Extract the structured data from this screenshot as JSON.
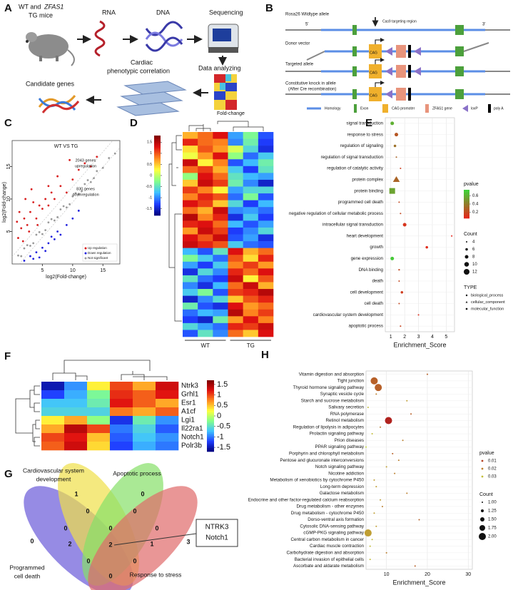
{
  "panel_labels": [
    "A",
    "B",
    "C",
    "D",
    "E",
    "F",
    "G",
    "H"
  ],
  "panel_a": {
    "mice_line1": "WT and",
    "mice_gene": "ZFAS1",
    "mice_line2": "TG mice",
    "rna": "RNA",
    "dna": "DNA",
    "sequencing": "Sequencing",
    "data_analyzing": "Data analyzing",
    "correlation": [
      "Cardiac",
      "phenotypic correlation"
    ],
    "candidates": "Candidate genes"
  },
  "panel_b": {
    "wildtype": "Rosa26 Wildtype allele",
    "five_prime": "5'",
    "three_prime": "3'",
    "cas9": "Cas9 targeting region",
    "donor": "Donor vector",
    "targeted": "Targeted allele",
    "constitutive": [
      "Constitutive knock in allele",
      "(After Cre recombination)"
    ],
    "cag_labels": [
      "CAG",
      "CAG",
      "CAG"
    ],
    "legend": [
      "Homology",
      "Exon",
      "CAG promoter",
      "ZFAS1 gene",
      "loxP",
      "poly A"
    ]
  },
  "chart_data": [
    {
      "type": "scatter",
      "title": "WT VS TG",
      "xlabel": "log2(Fold-change)",
      "ylabel": "log2(Fold-change)",
      "annotations": [
        [
          "2043 genes",
          "upregulation"
        ],
        [
          "830 genes",
          "downregulation"
        ]
      ],
      "xlim": [
        0,
        17.8
      ],
      "ylim": [
        0,
        19
      ],
      "xticks": [
        5,
        10,
        15
      ],
      "yticks": [
        5,
        10,
        15
      ],
      "series": [
        {
          "name": "Up regulation",
          "color": "#d81e1e",
          "x": [
            1,
            1.5,
            2,
            2.5,
            3,
            3.5,
            4,
            4.5,
            5,
            5.5,
            6,
            6.5,
            7,
            8,
            9,
            10,
            11,
            12,
            1.2,
            2.2,
            3.2,
            4.2,
            0.8,
            1.8,
            2.8,
            6,
            7.5,
            9.5,
            13,
            14
          ],
          "values": [
            4,
            5.5,
            7,
            6,
            8,
            9.5,
            7,
            9,
            8.5,
            10,
            9,
            11,
            10,
            12,
            11,
            13,
            14.5,
            15.5,
            8,
            10,
            11.5,
            6,
            6.5,
            3.5,
            5,
            12,
            13.5,
            16,
            15,
            16.5
          ]
        },
        {
          "name": "Down regulation",
          "color": "#2222dd",
          "x": [
            2,
            3,
            4,
            5,
            6,
            7,
            8,
            9,
            10,
            4.5,
            5.5,
            3.5,
            6.5,
            7.5,
            11
          ],
          "values": [
            0.5,
            1.2,
            1.8,
            2.5,
            3.2,
            3.8,
            4.5,
            6,
            7,
            1,
            2,
            0.8,
            4.2,
            5,
            8.2
          ]
        },
        {
          "name": "Not significant",
          "color": "#9a9a9a",
          "x": [
            1,
            2,
            3,
            4,
            5,
            6,
            7,
            8,
            9,
            10,
            11,
            12,
            13,
            14,
            15,
            16,
            17,
            1.5,
            2.5,
            3.5,
            4.5,
            5.5,
            6.5,
            7.5,
            8.5,
            9.5,
            10.5,
            11.5,
            12.5,
            13.5
          ],
          "values": [
            1.3,
            2.4,
            2.8,
            4.5,
            4.6,
            6.4,
            6.7,
            8.4,
            8.7,
            10.4,
            10.8,
            12.3,
            12.6,
            14.3,
            14.8,
            16.3,
            17,
            1.2,
            2.9,
            3.2,
            4.9,
            5.2,
            6.9,
            7.2,
            8.9,
            9.2,
            10.9,
            11.2,
            12.9,
            13.2
          ]
        }
      ]
    },
    {
      "type": "heatmap",
      "title": "Fold-change",
      "group_labels": [
        "WT",
        "TG"
      ],
      "zlim": [
        -1.8,
        1.8
      ],
      "zticks": [
        1.5,
        1,
        0.5,
        0,
        -0.5,
        -1,
        -1.5
      ],
      "colors": [
        "#00007a",
        "#1f3dff",
        "#3fc2ff",
        "#84ff8a",
        "#ffff3c",
        "#ff8a1f",
        "#e01010",
        "#7a0000"
      ],
      "values": [
        [
          0.6,
          0.9,
          1.3,
          -0.9,
          -0.3,
          -1.2
        ],
        [
          1.2,
          0.9,
          0.8,
          -1.0,
          -0.4,
          -1.3
        ],
        [
          0.4,
          1.0,
          0.7,
          0.1,
          -0.6,
          -1.4
        ],
        [
          0.2,
          0.7,
          1.3,
          -0.2,
          -1.1,
          -0.7
        ],
        [
          1.4,
          0.3,
          0.8,
          -1.2,
          -0.8,
          -0.4
        ],
        [
          0.9,
          1.1,
          0.6,
          -0.7,
          -1.3,
          -0.5
        ],
        [
          -0.2,
          1.3,
          0.9,
          -0.5,
          -0.8,
          -0.9
        ],
        [
          0.5,
          1.4,
          1.1,
          -0.4,
          -1.0,
          -1.5
        ],
        [
          1.1,
          0.8,
          0.3,
          -0.9,
          -0.6,
          -0.6
        ],
        [
          0.8,
          1.2,
          1.0,
          -1.1,
          -0.3,
          -1.2
        ],
        [
          1.3,
          1.1,
          0.5,
          -0.6,
          -1.3,
          -0.8
        ],
        [
          0.9,
          0.6,
          1.4,
          -1.0,
          -0.9,
          -1.1
        ],
        [
          1.5,
          0.8,
          1.2,
          -1.4,
          -0.7,
          -1.3
        ],
        [
          1.2,
          1.3,
          0.9,
          -0.8,
          -1.2,
          -0.9
        ],
        [
          0.7,
          1.4,
          1.1,
          -1.3,
          -1.0,
          -0.6
        ],
        [
          1.3,
          1.0,
          1.4,
          -1.2,
          -0.9,
          -1.4
        ],
        [
          1.4,
          1.2,
          1.0,
          -0.7,
          -1.1,
          -1.2
        ],
        [
          -0.8,
          -1.2,
          -0.5,
          1.3,
          0.6,
          0.9
        ],
        [
          -0.3,
          -0.7,
          -1.1,
          1.0,
          0.4,
          1.2
        ],
        [
          -0.9,
          -1.3,
          -0.7,
          0.8,
          1.1,
          0.7
        ],
        [
          -1.4,
          -0.6,
          -1.0,
          1.2,
          0.9,
          1.3
        ],
        [
          -0.5,
          -1.1,
          -1.3,
          1.4,
          0.3,
          1.0
        ],
        [
          -1.0,
          -1.4,
          -0.8,
          0.9,
          1.4,
          0.6
        ],
        [
          -0.7,
          -0.3,
          -1.2,
          1.1,
          1.2,
          1.5
        ],
        [
          -1.5,
          -1.0,
          -0.6,
          0.5,
          1.0,
          1.2
        ],
        [
          -0.4,
          -1.2,
          -1.4,
          1.3,
          0.7,
          0.9
        ],
        [
          -1.1,
          -0.8,
          -0.9,
          1.5,
          0.8,
          1.1
        ],
        [
          -1.3,
          -1.5,
          -0.4,
          0.7,
          1.3,
          0.8
        ],
        [
          -0.6,
          -0.9,
          -1.1,
          1.2,
          1.1,
          1.4
        ],
        [
          -1.2,
          -0.5,
          -1.0,
          0.9,
          0.5,
          1.3
        ]
      ]
    },
    {
      "type": "bubble",
      "xlabel": "Enrichment_Score",
      "categories": [
        "signal transduction",
        "response to stress",
        "regulation of signaling",
        "regulation of signal transduction",
        "regulation of catalytic activity",
        "protein complex",
        "protein binding",
        "programmed cell death",
        "negative regulation of cellular metabolic process",
        "intracellular signal transduction",
        "heart development",
        "growth",
        "gene expression",
        "DNA binding",
        "death",
        "cell development",
        "cell death",
        "cardiovascular system development",
        "apoptotic process"
      ],
      "values": [
        1.1,
        1.4,
        1.3,
        1.4,
        1.7,
        1.4,
        1.1,
        1.6,
        1.7,
        2.0,
        5.4,
        3.6,
        1.1,
        1.6,
        1.6,
        1.8,
        1.6,
        3.0,
        1.7
      ],
      "pvalue": [
        0.6,
        0.25,
        0.35,
        0.3,
        0.15,
        0.3,
        0.55,
        0.2,
        0.2,
        0.12,
        0.05,
        0.08,
        0.7,
        0.2,
        0.2,
        0.15,
        0.2,
        0.1,
        0.18
      ],
      "count": [
        8,
        8,
        6,
        4,
        4,
        12,
        12,
        4,
        4,
        8,
        4,
        6,
        8,
        4,
        4,
        6,
        4,
        4,
        4
      ],
      "shapes": [
        "circle",
        "circle",
        "circle",
        "circle",
        "circle",
        "triangle",
        "square",
        "circle",
        "circle",
        "circle",
        "circle",
        "circle",
        "circle",
        "square",
        "circle",
        "circle",
        "circle",
        "circle",
        "circle"
      ],
      "xlim": [
        0.6,
        5.6
      ],
      "xticks": [
        1,
        2,
        3,
        4,
        5
      ],
      "grid": true,
      "pvalue_title": "pvalue",
      "plim": [
        0.05,
        0.75
      ],
      "pticks": [
        0.6,
        0.4,
        0.2
      ],
      "pvalue_colors": [
        "#e8231a",
        "#3ad63a"
      ],
      "count_title": "Count",
      "count_ticks": [
        4,
        6,
        8,
        10,
        12
      ],
      "type_title": "TYPE",
      "type_names": [
        "biological_process",
        "cellular_component",
        "molecular_function"
      ],
      "type_shapes": [
        "circle",
        "triangle",
        "square"
      ]
    },
    {
      "type": "heatmap",
      "row_labels": [
        "Ntrk3",
        "Grhl1",
        "Esr1",
        "A1cf",
        "Lgi1",
        "Il22ra1",
        "Notch1",
        "Polr3b"
      ],
      "zlim": [
        -1.7,
        1.7
      ],
      "zticks": [
        1.5,
        1,
        0.5,
        0,
        -0.5,
        -1,
        -1.5
      ],
      "colors": [
        "#00007a",
        "#1f3dff",
        "#3fc2ff",
        "#84ff8a",
        "#ffff3c",
        "#ff8a1f",
        "#e01010",
        "#7a0000"
      ],
      "values": [
        [
          -1.5,
          -0.9,
          0.3,
          1.0,
          0.6,
          1.3
        ],
        [
          -1.2,
          -0.8,
          -0.3,
          1.1,
          0.9,
          1.2
        ],
        [
          -0.7,
          -0.7,
          -0.4,
          1.2,
          0.9,
          0.6
        ],
        [
          -0.6,
          -0.6,
          -0.6,
          0.8,
          0.6,
          0.9
        ],
        [
          0.3,
          0.6,
          -0.2,
          -1.3,
          -0.4,
          -0.9
        ],
        [
          0.6,
          1.4,
          1.0,
          -1.0,
          -0.6,
          -1.1
        ],
        [
          1.0,
          1.2,
          0.5,
          -1.1,
          -0.7,
          -0.9
        ],
        [
          0.9,
          1.3,
          0.4,
          -1.2,
          -0.8,
          -1.0
        ]
      ]
    },
    {
      "type": "bubble",
      "xlabel": "Enrichment_Score",
      "categories": [
        "Vitamin digestion and absorption",
        "Tight junction",
        "Thyroid hormone signaling pathway",
        "Synaptic vesicle cycle",
        "Starch and sucrose metabolism",
        "Salivary secretion",
        "RNA polymerase",
        "Retinol metabolism",
        "Regulation of lipolysis in adipocytes",
        "Prolactin signaling pathway",
        "Prion diseases",
        "PPAR signaling pathway",
        "Porphyrin and chlorophyll metabolism",
        "Pentose and glucuronate interconversions",
        "Notch signaling pathway",
        "Nicotine addiction",
        "Metabolism of xenobiotics by cytochrome P450",
        "Long-term depression",
        "Galactose metabolism",
        "Endocrine and other factor-regulated calcium reabsorption",
        "Drug metabolism - other enzymes",
        "Drug metabolism - cytochrome P450",
        "Dorso-ventral axis formation",
        "Cytosolic DNA-sensing pathway",
        "cGMP-PKG signaling pathway",
        "Central carbon metabolism in cancer",
        "Cardiac muscle contraction",
        "Carbohydrate digestion and absorption",
        "Bacterial invasion of epithelial cells",
        "Ascorbate and aldarate metabolism"
      ],
      "values": [
        20,
        7,
        8,
        7.5,
        15,
        5.5,
        16,
        10.5,
        8.5,
        6.5,
        14,
        5,
        11.5,
        13,
        10,
        12,
        7,
        7.5,
        15,
        8.5,
        9,
        7,
        18,
        7.5,
        5.5,
        6.5,
        6,
        10,
        6,
        17
      ],
      "pvalue": [
        0.015,
        0.015,
        0.015,
        0.02,
        0.025,
        0.03,
        0.015,
        0.005,
        0.02,
        0.03,
        0.02,
        0.035,
        0.015,
        0.02,
        0.025,
        0.02,
        0.025,
        0.025,
        0.02,
        0.025,
        0.02,
        0.025,
        0.015,
        0.025,
        0.025,
        0.03,
        0.03,
        0.02,
        0.03,
        0.015
      ],
      "count": [
        1,
        2,
        2,
        1,
        1,
        1,
        1,
        2,
        1,
        1,
        1,
        1,
        1,
        1,
        1,
        1,
        1,
        1,
        1,
        1,
        1,
        1,
        1,
        1,
        2,
        1,
        1,
        1,
        1,
        1
      ],
      "xlim": [
        5,
        31
      ],
      "xticks": [
        10,
        20,
        30
      ],
      "grid": true,
      "pvalue_title": "pvalue",
      "plim": [
        0.005,
        0.035
      ],
      "pticks": [
        0.01,
        0.02,
        0.03
      ],
      "pvalue_colors": [
        "#b0221e",
        "#c6dc3c"
      ],
      "count_title": "Count",
      "count_ticks": [
        {
          "value": 1,
          "label": "1.00"
        },
        {
          "value": 1.25,
          "label": "1.25"
        },
        {
          "value": 1.5,
          "label": "1.50"
        },
        {
          "value": 1.75,
          "label": "1.75"
        },
        {
          "value": 2,
          "label": "2.00"
        }
      ]
    }
  ],
  "venn": {
    "sets": [
      [
        "Cardiovascular system",
        "development"
      ],
      [
        "Apoptotic process"
      ],
      [
        "Programmed",
        "cell death"
      ],
      [
        "Response to stress"
      ]
    ],
    "counts": [
      1,
      0,
      0,
      0,
      0,
      0,
      0,
      0,
      3,
      2,
      2,
      1,
      0,
      0,
      0
    ],
    "callout": [
      "NTRK3",
      "Notch1"
    ]
  }
}
